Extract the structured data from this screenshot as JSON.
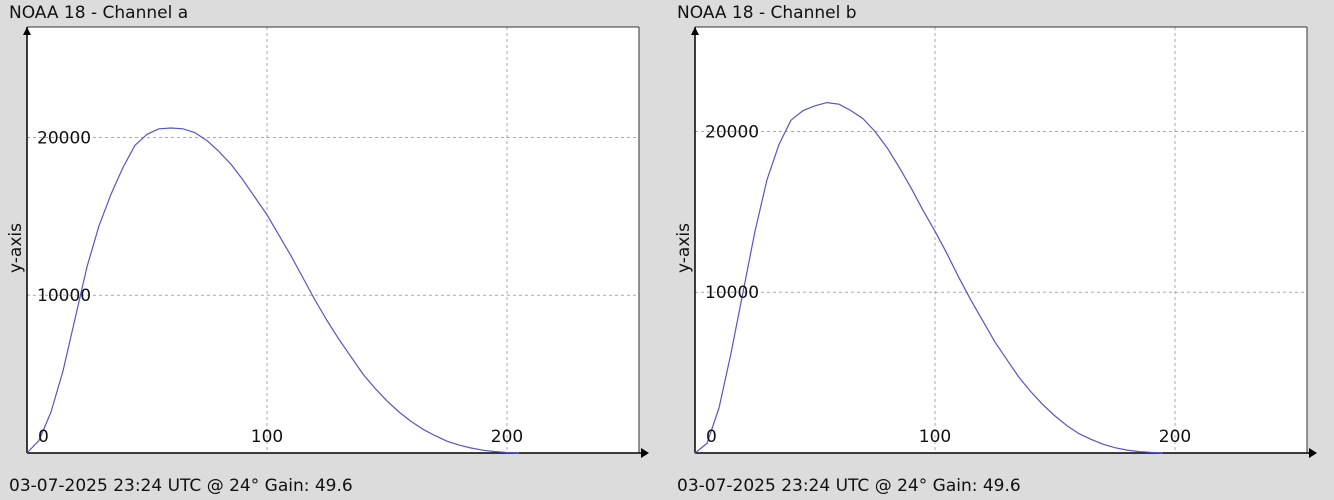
{
  "chart_data": [
    {
      "type": "line",
      "title": "NOAA 18 - Channel a",
      "xlabel": "",
      "ylabel": "y-axis",
      "footer": "03-07-2025 23:24 UTC @ 24° Gain: 49.6",
      "xlim": [
        0,
        255
      ],
      "ylim": [
        0,
        27000
      ],
      "xticks": [
        0,
        100,
        200
      ],
      "yticks": [
        10000,
        20000
      ],
      "grid": true,
      "line_color": "#5555cc",
      "series": [
        {
          "x": [
            0,
            5,
            10,
            15,
            20,
            25,
            30,
            35,
            40,
            45,
            50,
            55,
            60,
            65,
            70,
            75,
            80,
            85,
            90,
            95,
            100,
            105,
            110,
            115,
            120,
            125,
            130,
            135,
            140,
            145,
            150,
            155,
            160,
            165,
            170,
            175,
            180,
            185,
            190,
            195,
            200,
            205
          ],
          "values": [
            0,
            800,
            2600,
            5200,
            8500,
            11800,
            14400,
            16400,
            18100,
            19500,
            20200,
            20550,
            20600,
            20550,
            20300,
            19800,
            19100,
            18300,
            17300,
            16200,
            15100,
            13800,
            12500,
            11100,
            9700,
            8400,
            7200,
            6100,
            5000,
            4100,
            3300,
            2600,
            2000,
            1500,
            1100,
            750,
            500,
            320,
            180,
            90,
            30,
            10
          ]
        }
      ]
    },
    {
      "type": "line",
      "title": "NOAA 18 - Channel b",
      "xlabel": "",
      "ylabel": "y-axis",
      "footer": "03-07-2025 23:24 UTC @ 24° Gain: 49.6",
      "xlim": [
        0,
        255
      ],
      "ylim": [
        0,
        26500
      ],
      "xticks": [
        0,
        100,
        200
      ],
      "yticks": [
        10000,
        20000
      ],
      "grid": true,
      "line_color": "#5555cc",
      "series": [
        {
          "x": [
            0,
            5,
            10,
            15,
            20,
            25,
            30,
            35,
            40,
            45,
            50,
            55,
            60,
            65,
            70,
            75,
            80,
            85,
            90,
            95,
            100,
            105,
            110,
            115,
            120,
            125,
            130,
            135,
            140,
            145,
            150,
            155,
            160,
            165,
            170,
            175,
            180,
            185,
            190,
            195
          ],
          "values": [
            0,
            600,
            2800,
            6200,
            10000,
            13800,
            17000,
            19200,
            20700,
            21300,
            21600,
            21800,
            21700,
            21300,
            20800,
            20000,
            19000,
            17800,
            16500,
            15100,
            13800,
            12400,
            10900,
            9500,
            8200,
            6900,
            5800,
            4700,
            3800,
            3000,
            2300,
            1700,
            1200,
            850,
            550,
            330,
            180,
            90,
            40,
            10
          ]
        }
      ]
    }
  ]
}
